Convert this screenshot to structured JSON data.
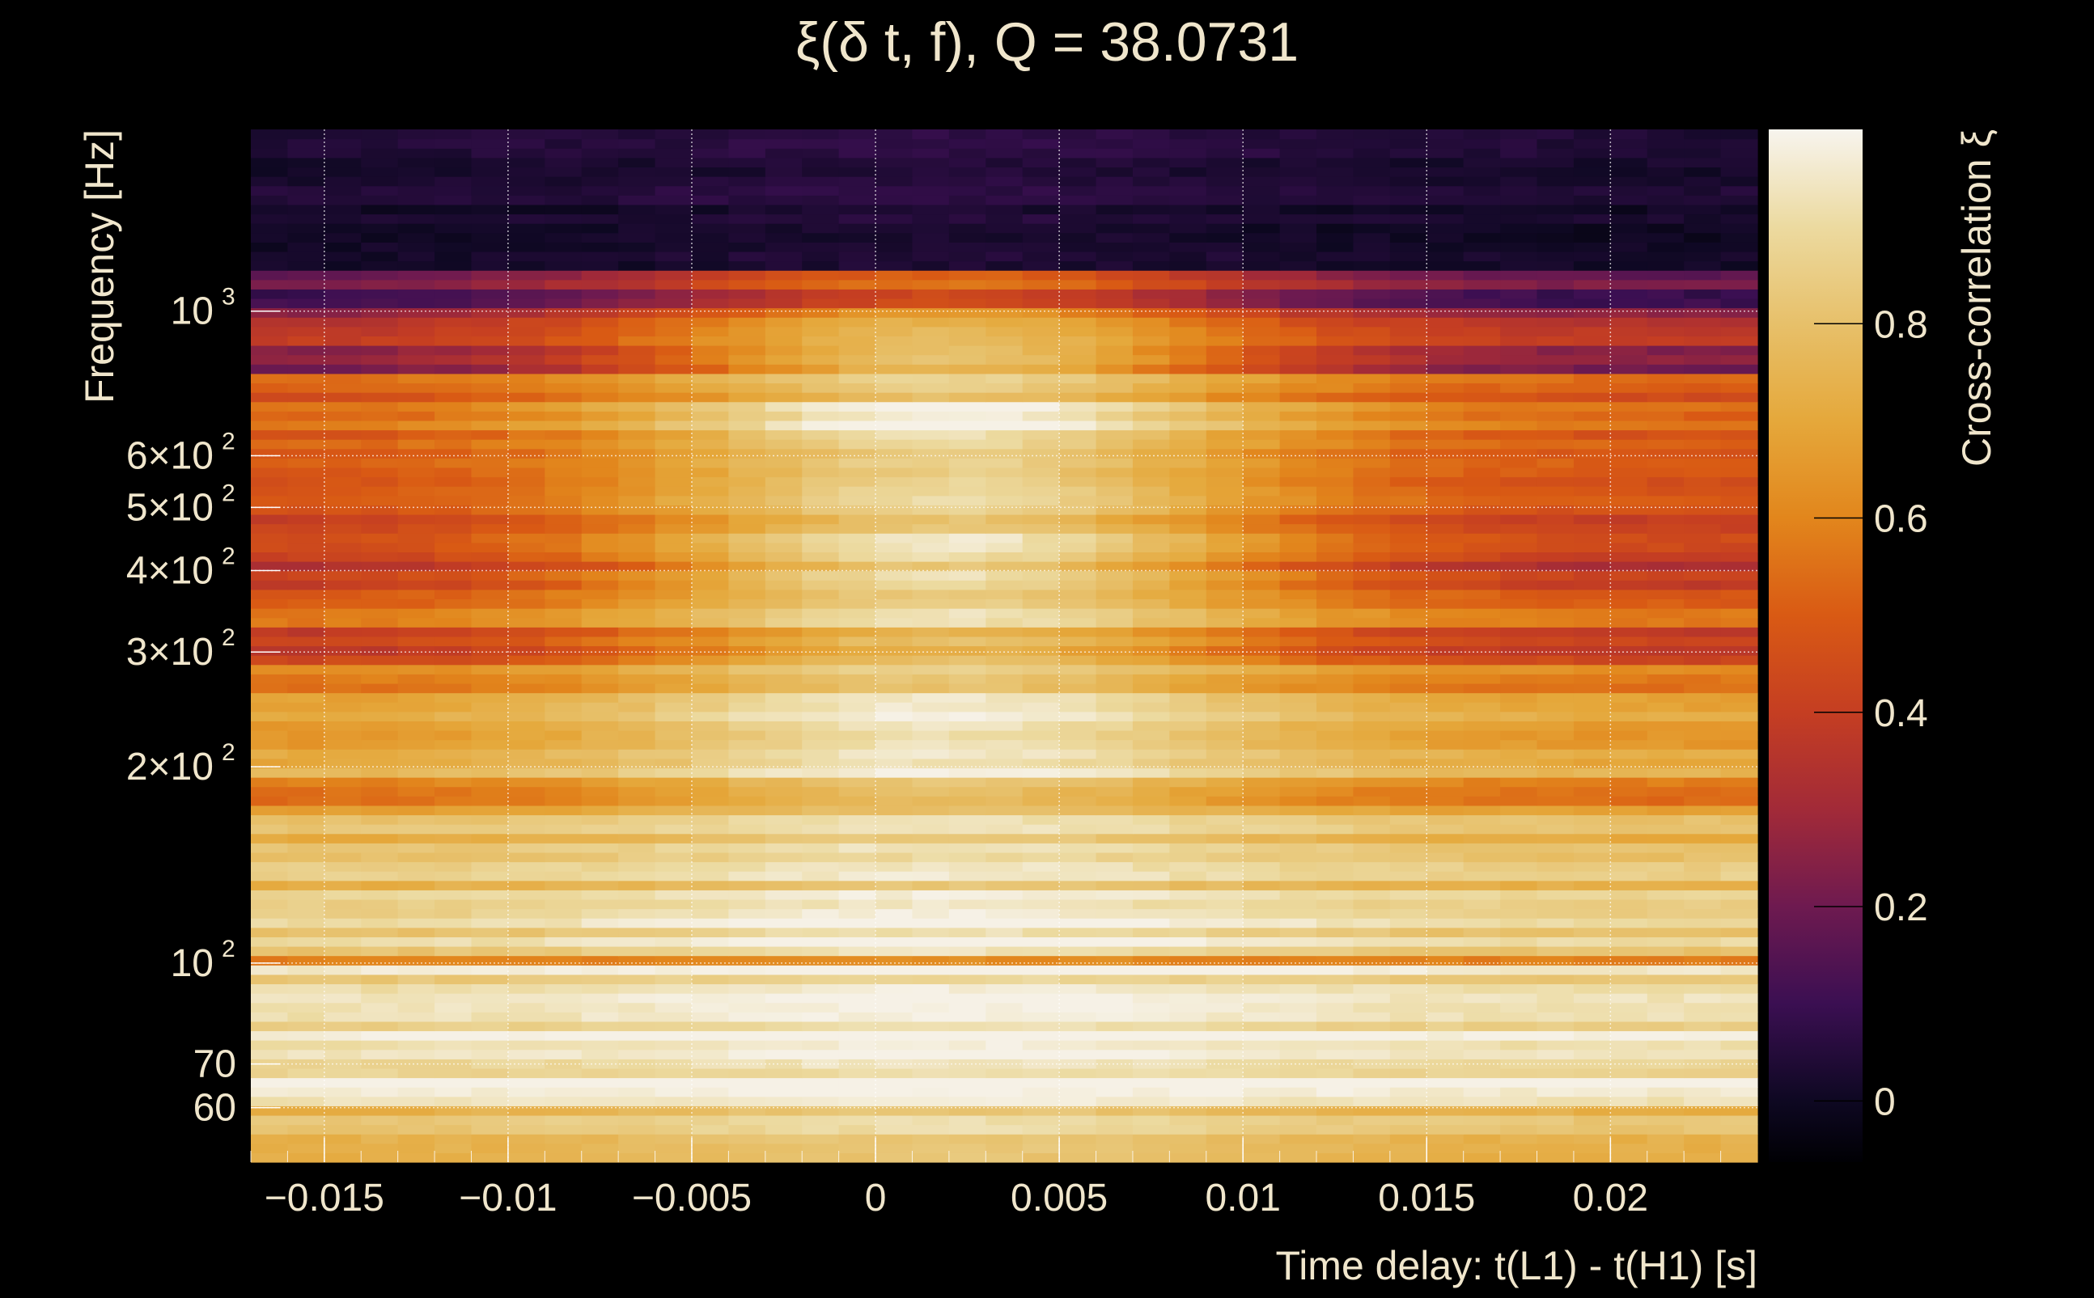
{
  "chart_data": {
    "type": "heatmap",
    "title": "ξ(δ t, f), Q = 38.0731",
    "xlabel": "Time delay: t(L1) - t(H1) [s]",
    "ylabel": "Frequency [Hz]",
    "colorbar_label": "Cross-correlation ξ",
    "xlim": [
      -0.017,
      0.024
    ],
    "ylim": [
      49.5,
      1900
    ],
    "yscale": "log",
    "clim": [
      -0.063,
      1.0
    ],
    "x_cell_width": 0.001,
    "x_ticks": [
      {
        "value": -0.015,
        "label": "−0.015"
      },
      {
        "value": -0.01,
        "label": "−0.01"
      },
      {
        "value": -0.005,
        "label": "−0.005"
      },
      {
        "value": 0,
        "label": "0"
      },
      {
        "value": 0.005,
        "label": "0.005"
      },
      {
        "value": 0.01,
        "label": "0.01"
      },
      {
        "value": 0.015,
        "label": "0.015"
      },
      {
        "value": 0.02,
        "label": "0.02"
      }
    ],
    "y_ticks": [
      {
        "value": 1000,
        "label": "10",
        "sup": "3"
      },
      {
        "value": 600,
        "label": "6×10",
        "sup": "2"
      },
      {
        "value": 500,
        "label": "5×10",
        "sup": "2"
      },
      {
        "value": 400,
        "label": "4×10",
        "sup": "2"
      },
      {
        "value": 300,
        "label": "3×10",
        "sup": "2"
      },
      {
        "value": 200,
        "label": "2×10",
        "sup": "2"
      },
      {
        "value": 100,
        "label": "10",
        "sup": "2"
      },
      {
        "value": 70,
        "label": "70",
        "sup": ""
      },
      {
        "value": 60,
        "label": "60",
        "sup": ""
      }
    ],
    "colorbar_ticks": [
      {
        "value": 0,
        "label": "0"
      },
      {
        "value": 0.2,
        "label": "0.2"
      },
      {
        "value": 0.4,
        "label": "0.4"
      },
      {
        "value": 0.6,
        "label": "0.6"
      },
      {
        "value": 0.8,
        "label": "0.8"
      }
    ],
    "grid": true,
    "peak_time_delay": 0.002,
    "bands": [
      {
        "f_low": 1167,
        "f_high": 1900,
        "edge": 0.02,
        "peak": 0.05
      },
      {
        "f_low": 1000,
        "f_high": 1167,
        "edge": 0.15,
        "peak": 0.5
      },
      {
        "f_low": 881,
        "f_high": 1000,
        "edge": 0.32,
        "peak": 0.72
      },
      {
        "f_low": 801,
        "f_high": 881,
        "edge": 0.22,
        "peak": 0.78
      },
      {
        "f_low": 730,
        "f_high": 801,
        "edge": 0.48,
        "peak": 0.82
      },
      {
        "f_low": 634,
        "f_high": 730,
        "edge": 0.5,
        "peak": 0.96
      },
      {
        "f_low": 550,
        "f_high": 634,
        "edge": 0.55,
        "peak": 0.92
      },
      {
        "f_low": 455,
        "f_high": 550,
        "edge": 0.45,
        "peak": 0.87
      },
      {
        "f_low": 377,
        "f_high": 455,
        "edge": 0.37,
        "peak": 0.88
      },
      {
        "f_low": 328,
        "f_high": 377,
        "edge": 0.5,
        "peak": 0.86
      },
      {
        "f_low": 284,
        "f_high": 328,
        "edge": 0.42,
        "peak": 0.8
      },
      {
        "f_low": 259,
        "f_high": 284,
        "edge": 0.6,
        "peak": 0.86
      },
      {
        "f_low": 214,
        "f_high": 259,
        "edge": 0.66,
        "peak": 0.94
      },
      {
        "f_low": 195,
        "f_high": 214,
        "edge": 0.72,
        "peak": 0.96
      },
      {
        "f_low": 177,
        "f_high": 195,
        "edge": 0.55,
        "peak": 0.8
      },
      {
        "f_low": 147,
        "f_high": 177,
        "edge": 0.75,
        "peak": 0.88
      },
      {
        "f_low": 122,
        "f_high": 147,
        "edge": 0.8,
        "peak": 0.9
      },
      {
        "f_low": 101,
        "f_high": 122,
        "edge": 0.84,
        "peak": 0.97
      },
      {
        "f_low": 98.6,
        "f_high": 101,
        "edge": 0.66,
        "peak": 0.7
      },
      {
        "f_low": 69,
        "f_high": 98.6,
        "edge": 0.9,
        "peak": 0.97
      },
      {
        "f_low": 60,
        "f_high": 69,
        "edge": 0.94,
        "peak": 0.98
      },
      {
        "f_low": 49.5,
        "f_high": 60,
        "edge": 0.8,
        "peak": 0.9
      }
    ],
    "colormap": [
      [
        -0.063,
        "#000004"
      ],
      [
        0.0,
        "#0e0822"
      ],
      [
        0.1,
        "#3b0f52"
      ],
      [
        0.2,
        "#6e1a50"
      ],
      [
        0.3,
        "#a22a38"
      ],
      [
        0.4,
        "#c53e22"
      ],
      [
        0.5,
        "#d95a14"
      ],
      [
        0.6,
        "#e2861c"
      ],
      [
        0.7,
        "#e5a83b"
      ],
      [
        0.8,
        "#e7c06a"
      ],
      [
        0.9,
        "#ecdaa0"
      ],
      [
        1.0,
        "#f7f4ee"
      ]
    ]
  }
}
